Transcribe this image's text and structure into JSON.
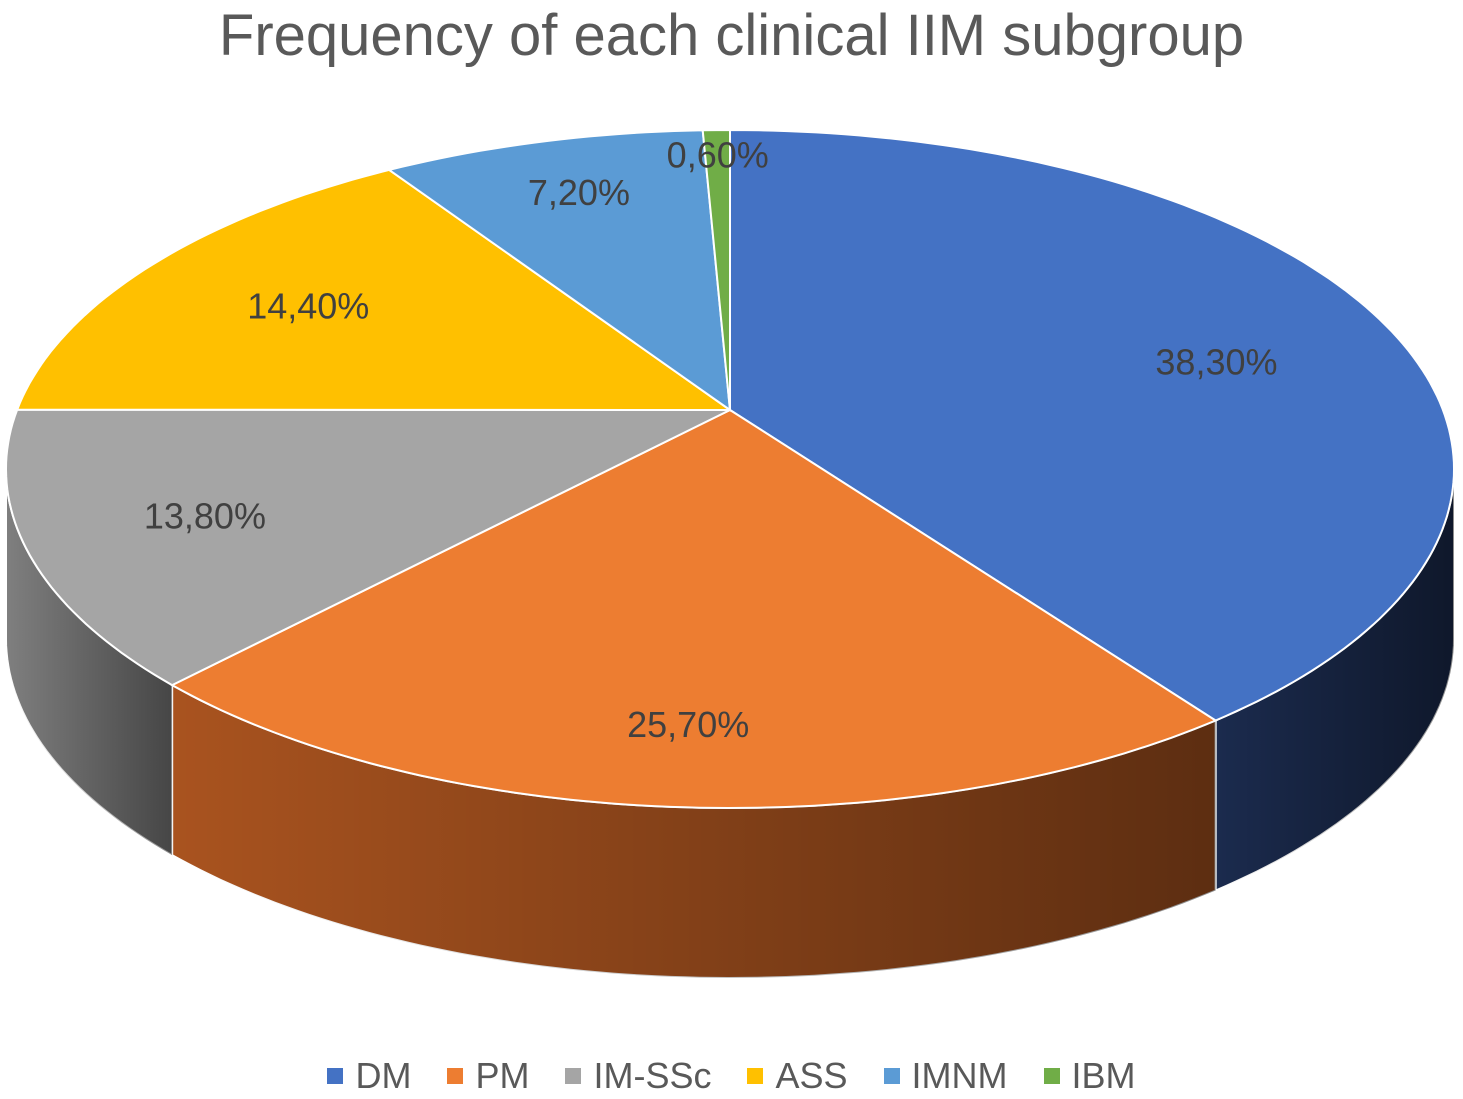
{
  "chart_data": {
    "type": "pie",
    "title": "Frequency of each clinical IIM subgroup",
    "categories": [
      "DM",
      "PM",
      "IM-SSc",
      "ASS",
      "IMNM",
      "IBM"
    ],
    "values": [
      38.3,
      25.7,
      13.8,
      14.4,
      7.2,
      0.6
    ],
    "labels": [
      "38,30%",
      "25,70%",
      "13,80%",
      "14,40%",
      "7,20%",
      "0,60%"
    ],
    "colors": [
      "#4472c4",
      "#ed7d31",
      "#a5a5a5",
      "#ffc000",
      "#5b9bd5",
      "#70ad47"
    ],
    "side_colors": [
      "#1b2b4e",
      "#a9531f",
      "#7f7f7f",
      "#b38600",
      "#3b6e9a",
      "#4a7a2e"
    ],
    "legend_position": "bottom",
    "style": "3d"
  }
}
